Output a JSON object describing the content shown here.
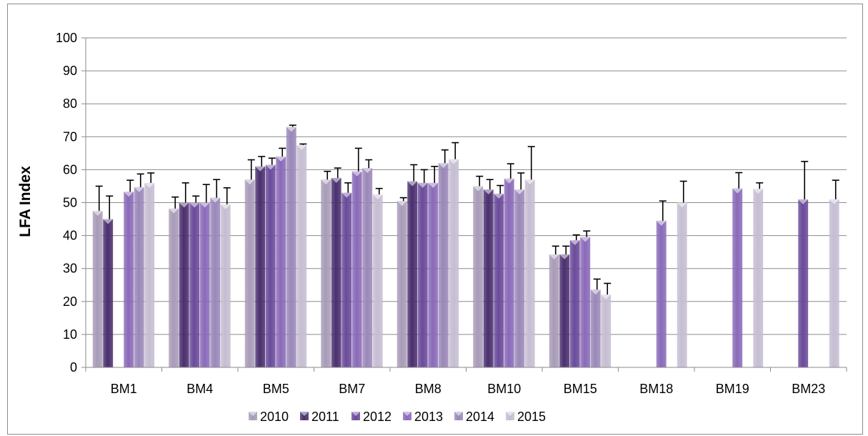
{
  "chart_data": {
    "type": "bar",
    "title": "",
    "xlabel": "",
    "ylabel": "LFA Index",
    "ylim": [
      0,
      100
    ],
    "yticks": [
      0,
      10,
      20,
      30,
      40,
      50,
      60,
      70,
      80,
      90,
      100
    ],
    "grid": true,
    "legend_position": "bottom",
    "categories": [
      "BM1",
      "BM4",
      "BM5",
      "BM7",
      "BM8",
      "BM10",
      "BM15",
      "BM18",
      "BM19",
      "BM23"
    ],
    "series": [
      {
        "name": "2010",
        "color": "#a89bb8",
        "values": [
          47.5,
          48.2,
          57,
          57,
          50.5,
          55,
          34.3,
          null,
          null,
          null
        ],
        "errors": [
          7.5,
          3.5,
          6,
          2.5,
          1,
          3,
          2.5,
          null,
          null,
          null
        ]
      },
      {
        "name": "2011",
        "color": "#4a2f6e",
        "values": [
          45,
          50,
          61,
          57.5,
          56.5,
          54,
          34.3,
          null,
          null,
          null
        ],
        "errors": [
          7,
          6,
          3,
          3,
          5,
          3,
          2.5,
          null,
          null,
          null
        ]
      },
      {
        "name": "2012",
        "color": "#6a4a9a",
        "values": [
          null,
          50,
          61.5,
          53,
          56,
          52.7,
          38.6,
          null,
          null,
          51
        ],
        "errors": [
          null,
          2,
          2,
          3,
          4,
          2.5,
          1.6,
          null,
          null,
          11.5
        ]
      },
      {
        "name": "2013",
        "color": "#8a6ab8",
        "values": [
          53.3,
          50,
          64,
          59.5,
          56,
          57.3,
          39.6,
          44.5,
          54.3,
          null
        ],
        "errors": [
          3.5,
          5.5,
          2.5,
          7,
          5,
          4.5,
          1.8,
          6,
          4.8,
          null
        ]
      },
      {
        "name": "2014",
        "color": "#9a88b8",
        "values": [
          54.7,
          51.5,
          73,
          60.5,
          62,
          54,
          23.6,
          null,
          null,
          null
        ],
        "errors": [
          4,
          5.5,
          0.5,
          2.5,
          4,
          5,
          3.2,
          null,
          null,
          null
        ]
      },
      {
        "name": "2015",
        "color": "#c6bdd2",
        "values": [
          56,
          49.5,
          67.5,
          52.5,
          63.2,
          57,
          22.1,
          50,
          54.2,
          51
        ],
        "errors": [
          3,
          5,
          0.3,
          1.8,
          5,
          10,
          3.4,
          6.5,
          1.8,
          5.8
        ]
      }
    ]
  }
}
